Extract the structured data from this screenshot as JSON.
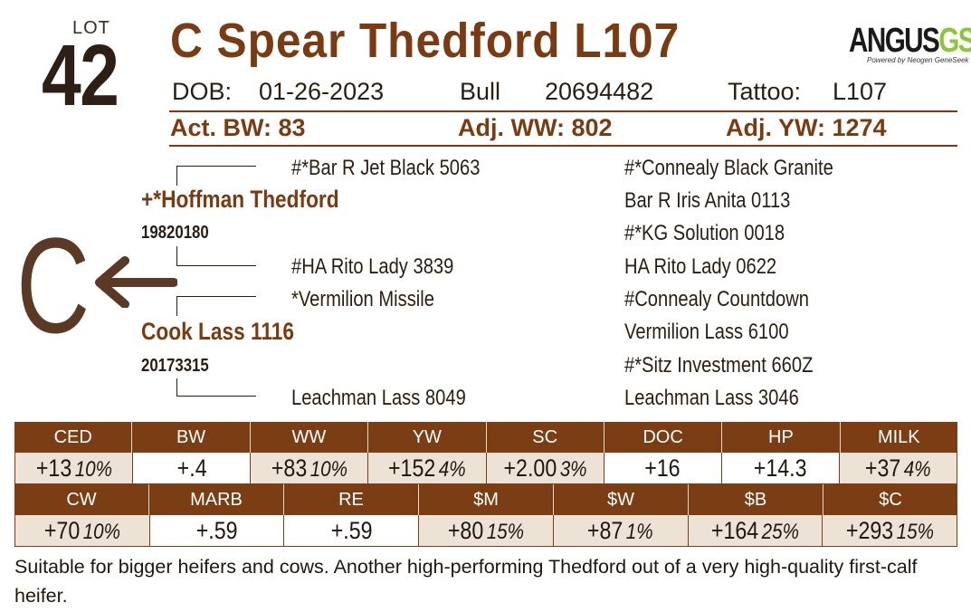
{
  "lot": {
    "label": "LOT",
    "number": "42"
  },
  "title": "C Spear Thedford L107",
  "logo": {
    "main": "ANGUS",
    "suffix": "GS",
    "tagline": "Powered by Neogen GeneSeek"
  },
  "info": {
    "dob_label": "DOB:",
    "dob": "01-26-2023",
    "sex": "Bull",
    "reg": "20694482",
    "tattoo_label": "Tattoo:",
    "tattoo": "L107"
  },
  "performance": {
    "bw": "Act. BW: 83",
    "ww": "Adj. WW: 802",
    "yw": "Adj. YW: 1274"
  },
  "pedigree": {
    "sire": "+*Hoffman Thedford",
    "sire_reg": "19820180",
    "sire_sire": "#*Bar R Jet Black 5063",
    "sire_dam": "#HA Rito Lady 3839",
    "dam": "Cook Lass 1116",
    "dam_reg": "20173315",
    "dam_sire": "*Vermilion Missile",
    "dam_dam": "Leachman Lass 8049",
    "right_column": [
      "#*Connealy Black Granite",
      "Bar R Iris Anita 0113",
      "#*KG Solution 0018",
      "HA Rito Lady 0622",
      "#Connealy Countdown",
      "Vermilion Lass 6100",
      "#*Sitz Investment 660Z",
      "Leachman Lass 3046"
    ],
    "symbol": "C"
  },
  "epd_row1": {
    "headers": [
      "CED",
      "BW",
      "WW",
      "YW",
      "SC",
      "DOC",
      "HP",
      "MILK"
    ],
    "values": [
      {
        "v": "+13",
        "p": "10%"
      },
      {
        "v": "+.4",
        "p": ""
      },
      {
        "v": "+83",
        "p": "10%"
      },
      {
        "v": "+152",
        "p": "4%"
      },
      {
        "v": "+2.00",
        "p": "3%"
      },
      {
        "v": "+16",
        "p": ""
      },
      {
        "v": "+14.3",
        "p": ""
      },
      {
        "v": "+37",
        "p": "4%"
      }
    ]
  },
  "epd_row2": {
    "headers": [
      "CW",
      "MARB",
      "RE",
      "$M",
      "$W",
      "$B",
      "$C"
    ],
    "values": [
      {
        "v": "+70",
        "p": "10%"
      },
      {
        "v": "+.59",
        "p": ""
      },
      {
        "v": "+.59",
        "p": ""
      },
      {
        "v": "+80",
        "p": "15%"
      },
      {
        "v": "+87",
        "p": "1%"
      },
      {
        "v": "+164",
        "p": "25%"
      },
      {
        "v": "+293",
        "p": "15%"
      }
    ]
  },
  "remarks": "Suitable for bigger heifers and cows. Another high-performing Thedford out of a very high-quality first-calf heifer.",
  "colors": {
    "brown": "#7a3b12",
    "header_bg": "#7b3d14",
    "shade": "#ece2d6",
    "logo_accent": "#8cc63f"
  }
}
